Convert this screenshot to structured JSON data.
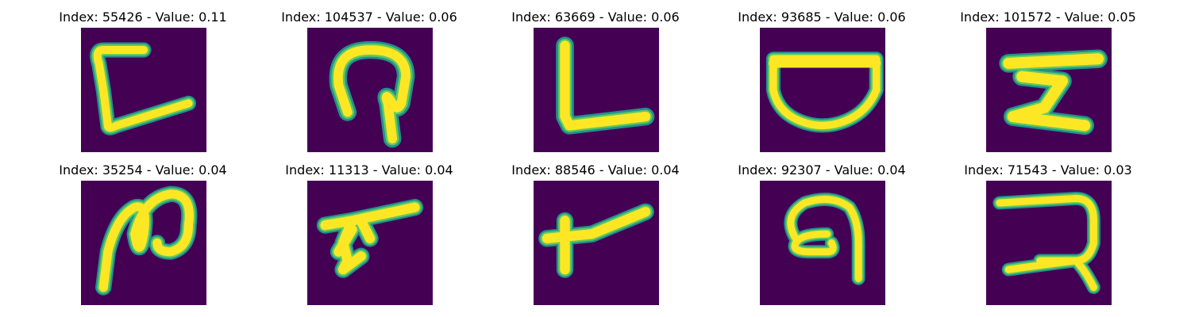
{
  "colors": {
    "background": "#440154",
    "stroke_core": "#fde725",
    "stroke_mid": "#5ec962",
    "stroke_edge": "#21918c"
  },
  "panels": [
    {
      "title": "Index: 55426 - Value: 0.11",
      "glyph": "bracket-left-shape"
    },
    {
      "title": "Index: 104537 - Value: 0.06",
      "glyph": "hook-arch-shape"
    },
    {
      "title": "Index: 63669 - Value: 0.06",
      "glyph": "letter-l-shape"
    },
    {
      "title": "Index: 93685 - Value: 0.06",
      "glyph": "bowl-shape"
    },
    {
      "title": "Index: 101572 - Value: 0.05",
      "glyph": "z-bar-shape"
    },
    {
      "title": "Index: 35254 - Value: 0.04",
      "glyph": "loop-s-shape"
    },
    {
      "title": "Index: 11313 - Value: 0.04",
      "glyph": "slanted-bar-shape"
    },
    {
      "title": "Index: 88546 - Value: 0.04",
      "glyph": "cross-slant-shape"
    },
    {
      "title": "Index: 92307 - Value: 0.04",
      "glyph": "spiral-hook-shape"
    },
    {
      "title": "Index: 71543 - Value: 0.03",
      "glyph": "reverse-c-shape"
    }
  ]
}
